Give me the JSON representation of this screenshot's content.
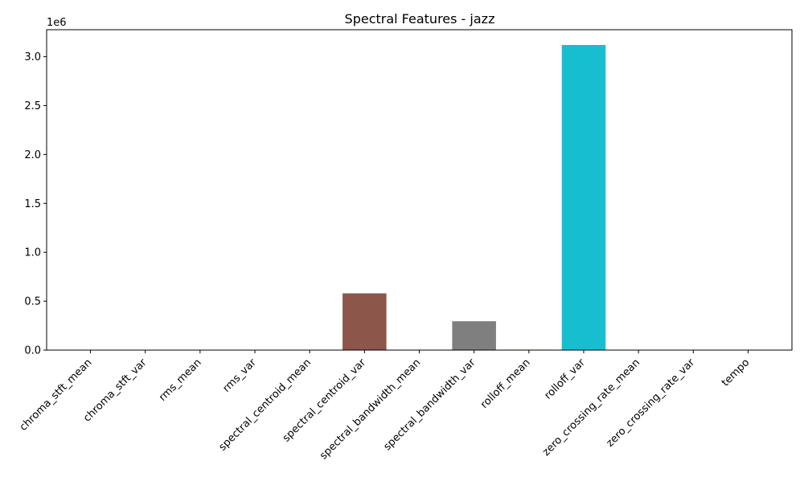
{
  "chart_data": {
    "type": "bar",
    "title": "Spectral Features - jazz",
    "xlabel": "",
    "ylabel": "",
    "categories": [
      "chroma_stft_mean",
      "chroma_stft_var",
      "rms_mean",
      "rms_var",
      "spectral_centroid_mean",
      "spectral_centroid_var",
      "spectral_bandwidth_mean",
      "spectral_bandwidth_var",
      "rolloff_mean",
      "rolloff_var",
      "zero_crossing_rate_mean",
      "zero_crossing_rate_var",
      "tempo"
    ],
    "values": [
      0.38,
      0.085,
      0.1,
      0.004,
      2200,
      580000,
      2200,
      295000,
      4600,
      3120000,
      0.1,
      0.003,
      120
    ],
    "colors": [
      "#1f77b4",
      "#ff7f0e",
      "#2ca02c",
      "#d62728",
      "#9467bd",
      "#8c564b",
      "#e377c2",
      "#7f7f7f",
      "#bcbd22",
      "#17becf",
      "#1f77b4",
      "#ff7f0e",
      "#2ca02c"
    ],
    "ylim": [
      0,
      3276000
    ],
    "yticks": [
      0,
      0.5,
      1.0,
      1.5,
      2.0,
      2.5,
      3.0
    ],
    "ytick_labels": [
      "0.0",
      "0.5",
      "1.0",
      "1.5",
      "2.0",
      "2.5",
      "3.0"
    ],
    "y_scale_factor": 1000000,
    "y_offset_label": "1e6",
    "grid": false,
    "legend": "none"
  }
}
